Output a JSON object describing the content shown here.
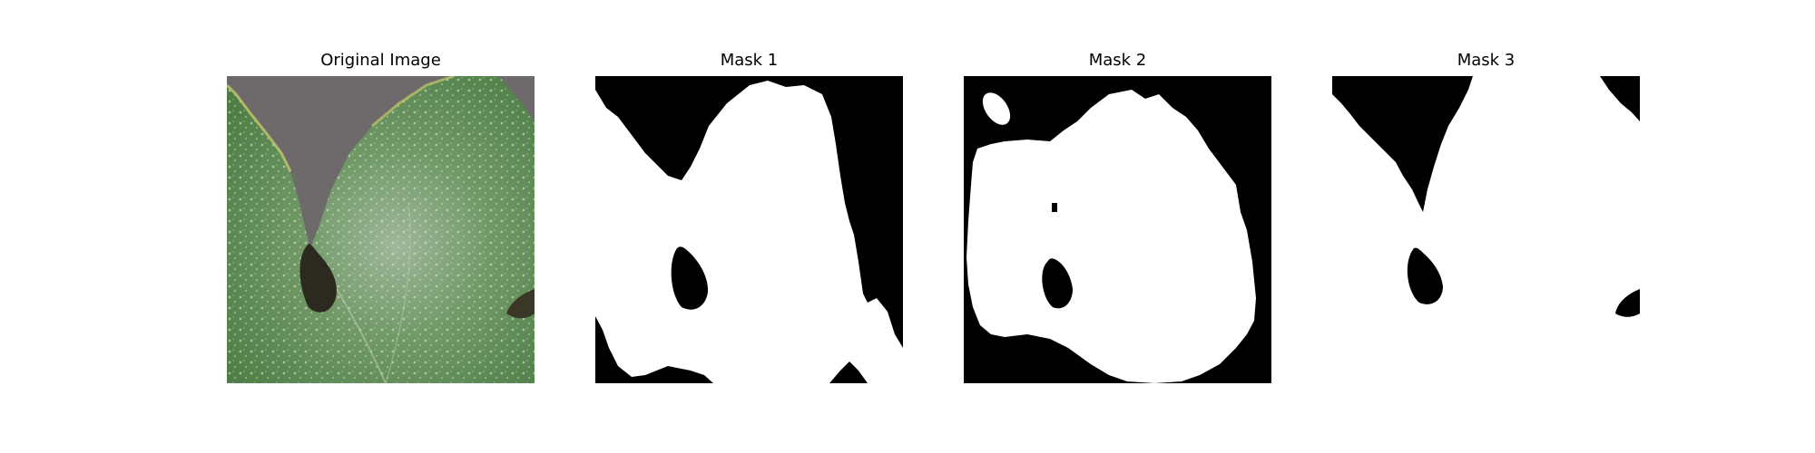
{
  "figure": {
    "panels": [
      {
        "title": "Original Image",
        "content": "leaf-photo"
      },
      {
        "title": "Mask 1",
        "content": "binary-mask"
      },
      {
        "title": "Mask 2",
        "content": "binary-mask"
      },
      {
        "title": "Mask 3",
        "content": "binary-mask"
      }
    ]
  },
  "colors": {
    "mask_foreground": "#ffffff",
    "mask_background": "#000000",
    "leaf_green": "#5a8a4a",
    "leaf_highlight": "#c8d6c4",
    "background_gray": "#6e6a6c",
    "hole_dark": "#2c2a20"
  }
}
